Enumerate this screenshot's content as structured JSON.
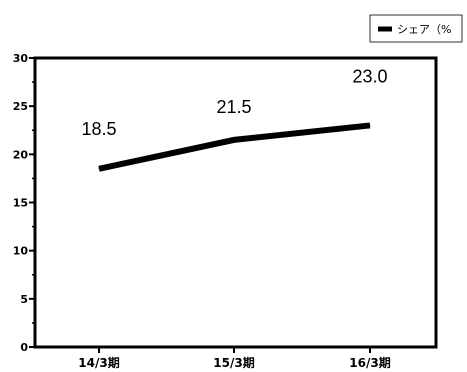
{
  "chart_data": {
    "type": "line",
    "categories": [
      "14/3期",
      "15/3期",
      "16/3期"
    ],
    "series": [
      {
        "name": "シェア（%",
        "values": [
          18.5,
          21.5,
          23.0
        ],
        "color": "#000000"
      }
    ],
    "data_labels": [
      "18.5",
      "21.5",
      "23.0"
    ],
    "ylim": [
      0,
      30
    ],
    "y_ticks": [
      0,
      5,
      10,
      15,
      20,
      25,
      30
    ],
    "y_tick_labels": [
      "0",
      "5",
      "10",
      "15",
      "20",
      "25",
      "30"
    ],
    "title": "",
    "xlabel": "",
    "ylabel": "",
    "legend_position": "top-right",
    "grid": false
  }
}
